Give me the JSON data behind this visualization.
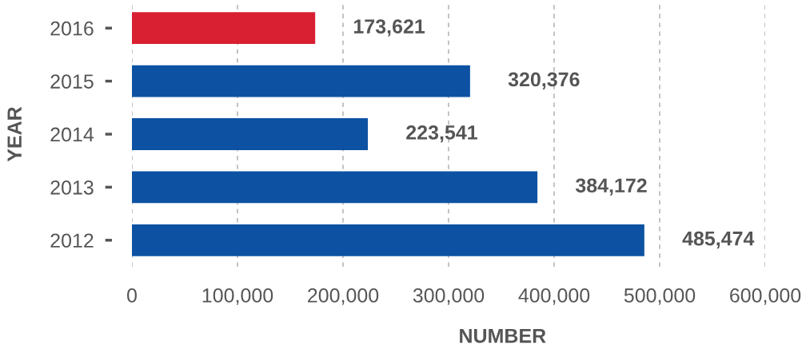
{
  "chart_data": {
    "type": "bar",
    "orientation": "horizontal",
    "categories": [
      "2016",
      "2015",
      "2014",
      "2013",
      "2012"
    ],
    "values": [
      173621,
      320376,
      223541,
      384172,
      485474
    ],
    "value_labels": [
      "173,621",
      "320,376",
      "223,541",
      "384,172",
      "485,474"
    ],
    "colors": [
      "#d91f32",
      "#0d52a2",
      "#0d52a2",
      "#0d52a2",
      "#0d52a2"
    ],
    "xlabel": "NUMBER",
    "ylabel": "YEAR",
    "xlim": [
      0,
      600000
    ],
    "xticks": [
      0,
      {
        "value": 100000,
        "label": "100,000"
      },
      {
        "value": 200000,
        "label": "200,000"
      },
      {
        "value": 300000,
        "label": "300,000"
      },
      {
        "value": 400000,
        "label": "400,000"
      },
      {
        "value": 500000,
        "label": "500,000"
      },
      {
        "value": 600000,
        "label": "600,000"
      }
    ],
    "grid": "x"
  }
}
